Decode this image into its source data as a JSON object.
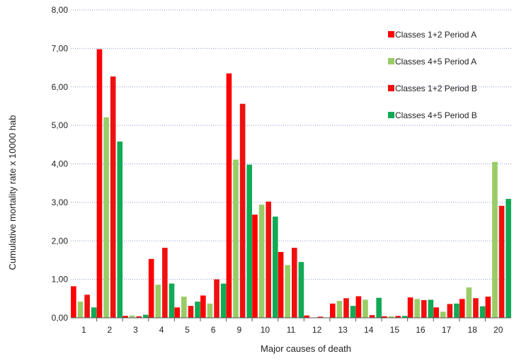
{
  "chart_data": {
    "type": "bar",
    "title": "",
    "xlabel": "Major causes of death",
    "ylabel": "Cumulative mortality rate x 10000 hab",
    "ylim": [
      0,
      8
    ],
    "yticks": [
      "0,00",
      "1,00",
      "2,00",
      "3,00",
      "4,00",
      "5,00",
      "6,00",
      "7,00",
      "8,00"
    ],
    "grid": "horizontal dotted",
    "legend_position": "top-right",
    "categories": [
      "1",
      "2",
      "3",
      "4",
      "5",
      "6",
      "9",
      "10",
      "11",
      "12",
      "13",
      "14",
      "15",
      "16",
      "17",
      "18",
      "20"
    ],
    "series": [
      {
        "name": "Classes 1+2 Period A",
        "color": "#ff0000",
        "values": [
          0.82,
          6.98,
          0.05,
          1.53,
          0.27,
          0.58,
          6.35,
          2.68,
          1.71,
          0.06,
          0.37,
          0.56,
          0.04,
          0.53,
          0.27,
          0.49,
          0.55
        ]
      },
      {
        "name": "Classes 4+5 Period A",
        "color": "#99cc66",
        "values": [
          0.42,
          5.21,
          0.06,
          0.86,
          0.55,
          0.37,
          4.11,
          2.94,
          1.37,
          0.0,
          0.44,
          0.47,
          0.04,
          0.49,
          0.16,
          0.79,
          4.05
        ]
      },
      {
        "name": "Classes 1+2 Period B",
        "color": "#ee1111",
        "values": [
          0.6,
          6.27,
          0.04,
          1.82,
          0.31,
          1.0,
          5.56,
          3.02,
          1.82,
          0.03,
          0.51,
          0.07,
          0.05,
          0.46,
          0.36,
          0.51,
          2.91
        ]
      },
      {
        "name": "Classes 4+5 Period B",
        "color": "#11aa55",
        "values": [
          0.27,
          4.58,
          0.08,
          0.89,
          0.42,
          0.89,
          3.98,
          2.63,
          1.45,
          0.0,
          0.31,
          0.52,
          0.05,
          0.47,
          0.37,
          0.3,
          3.09
        ]
      }
    ]
  }
}
